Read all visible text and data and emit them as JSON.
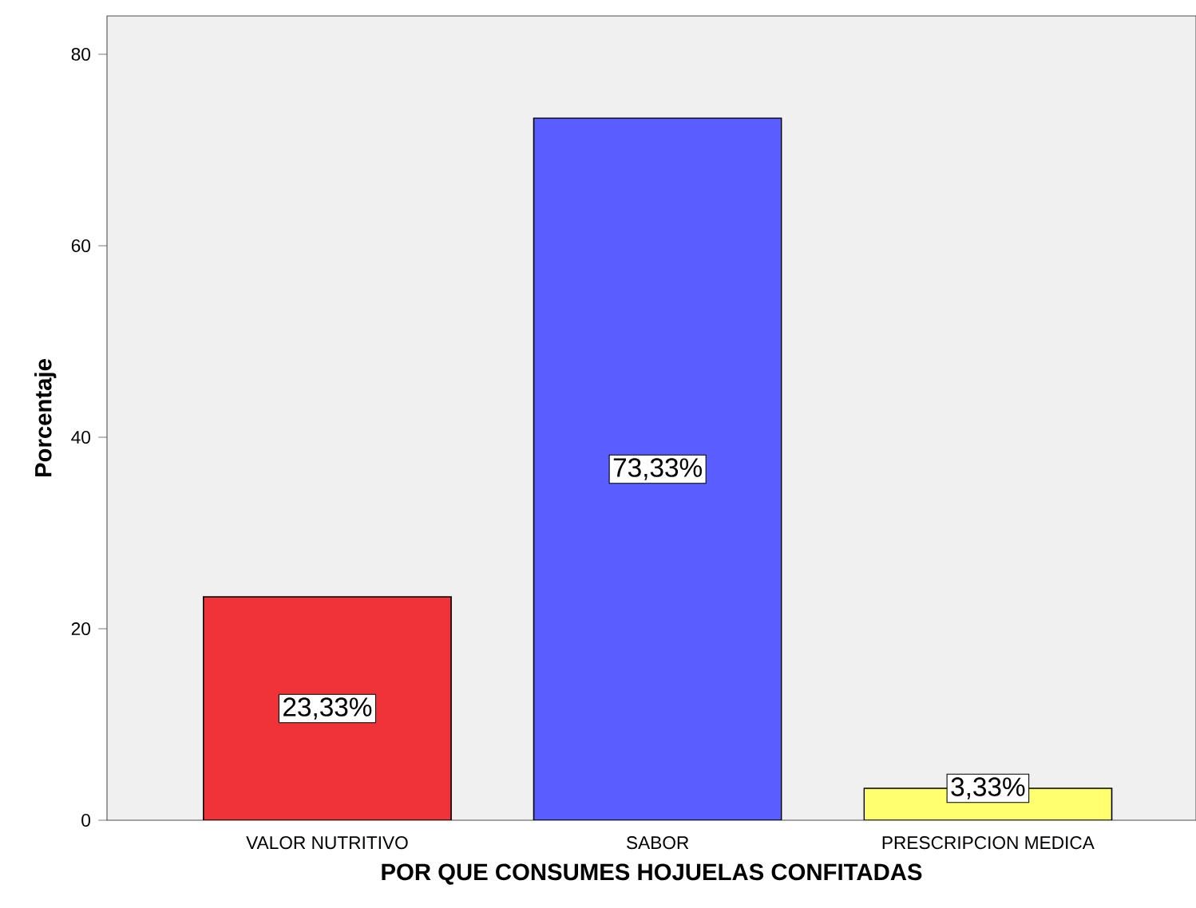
{
  "chart_data": {
    "type": "bar",
    "xlabel": "POR QUE CONSUMES HOJUELAS CONFITADAS",
    "ylabel": "Porcentaje",
    "categories": [
      "VALOR NUTRITIVO",
      "SABOR",
      "PRESCRIPCION MEDICA"
    ],
    "values": [
      23.33,
      73.33,
      3.33
    ],
    "colors": [
      "#f03339",
      "#5a5dff",
      "#ffff70"
    ],
    "value_labels": [
      "23,33%",
      "73,33%",
      "3,33%"
    ],
    "ylim": [
      0,
      84
    ],
    "yticks": [
      0,
      20,
      40,
      60,
      80
    ],
    "grid": false
  }
}
